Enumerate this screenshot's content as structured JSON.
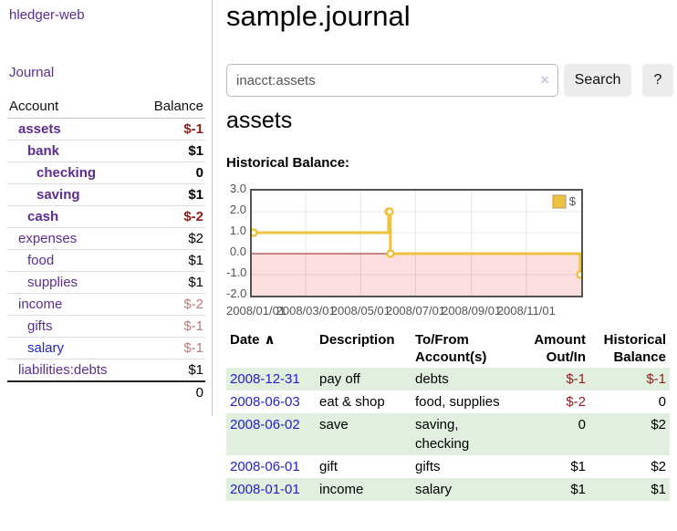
{
  "app": {
    "brand": "hledger-web",
    "nav": {
      "journal": "Journal"
    }
  },
  "colors": {
    "link_purple": "#5c2d91",
    "link_blue": "#2222cc",
    "negative_red": "#8f1d1d",
    "muted_negative": "#bd7a7a",
    "row_green": "#e1efdf",
    "chart_gold": "#edc240",
    "chart_negative_region": "#fbdede",
    "chart_zero_line": "#8f1d1d",
    "chart_border": "#545454"
  },
  "sidebar": {
    "headers": {
      "account": "Account",
      "balance": "Balance"
    },
    "accounts": [
      {
        "name": "assets",
        "balance": "$-1",
        "level": 1,
        "bold": true,
        "link": "purple",
        "style": "negb"
      },
      {
        "name": "bank",
        "balance": "$1",
        "level": 2,
        "bold": true,
        "link": "purple",
        "style": "posb"
      },
      {
        "name": "checking",
        "balance": "0",
        "level": 3,
        "bold": true,
        "link": "purple",
        "style": "posb"
      },
      {
        "name": "saving",
        "balance": "$1",
        "level": 3,
        "bold": true,
        "link": "purple",
        "style": "posb"
      },
      {
        "name": "cash",
        "balance": "$-2",
        "level": 2,
        "bold": true,
        "link": "purple",
        "style": "negb"
      },
      {
        "name": "expenses",
        "balance": "$2",
        "level": 1,
        "bold": false,
        "link": "purple",
        "style": "plain"
      },
      {
        "name": "food",
        "balance": "$1",
        "level": 2,
        "bold": false,
        "link": "purple",
        "style": "plain"
      },
      {
        "name": "supplies",
        "balance": "$1",
        "level": 2,
        "bold": false,
        "link": "purple",
        "style": "plain"
      },
      {
        "name": "income",
        "balance": "$-2",
        "level": 1,
        "bold": false,
        "link": "purple",
        "style": "rose"
      },
      {
        "name": "gifts",
        "balance": "$-1",
        "level": 2,
        "bold": false,
        "link": "purple",
        "style": "rose"
      },
      {
        "name": "salary",
        "balance": "$-1",
        "level": 2,
        "bold": false,
        "link": "blue",
        "style": "rose"
      },
      {
        "name": "liabilities:debts",
        "balance": "$1",
        "level": 1,
        "bold": false,
        "link": "purple",
        "style": "plain"
      }
    ],
    "total": "0"
  },
  "main": {
    "title": "sample.journal",
    "search": {
      "value": "inacct:assets",
      "clear_icon": "×",
      "search_button": "Search",
      "help_button": "?"
    },
    "account_heading": "assets",
    "chart_heading": "Historical Balance:"
  },
  "chart_data": {
    "type": "line",
    "title": "Historical Balance",
    "step": true,
    "grid": true,
    "legend_position": "top-right",
    "ylim": [
      -2.0,
      3.0
    ],
    "xlim": [
      "2008-01-01",
      "2009-01-01"
    ],
    "yticks": [
      "3.0",
      "2.0",
      "1.0",
      "0.0",
      "-1.0",
      "-2.0"
    ],
    "ytick_values": [
      3,
      2,
      1,
      0,
      -1,
      -2
    ],
    "xticks": [
      {
        "label": "2008/01/01",
        "date": "2008-01-01"
      },
      {
        "label": "2008/03/01",
        "date": "2008-03-01"
      },
      {
        "label": "2008/05/01",
        "date": "2008-05-01"
      },
      {
        "label": "2008/07/01",
        "date": "2008-07-01"
      },
      {
        "label": "2008/09/01",
        "date": "2008-09-01"
      },
      {
        "label": "2008/11/01",
        "date": "2008-11-01"
      }
    ],
    "series": [
      {
        "name": "$",
        "color": "#edc240",
        "points": [
          {
            "date": "2008-01-01",
            "value": 1
          },
          {
            "date": "2008-06-01",
            "value": 2
          },
          {
            "date": "2008-06-02",
            "value": 2
          },
          {
            "date": "2008-06-03",
            "value": 0
          },
          {
            "date": "2008-12-31",
            "value": -1
          }
        ]
      }
    ],
    "annotations": {
      "negative_region_shaded": true,
      "zero_line": true
    }
  },
  "register": {
    "headers": {
      "date": "Date",
      "sort_icon": "∧",
      "description": "Description",
      "tofrom": "To/From Account(s)",
      "amount": "Amount Out/In",
      "historical": "Historical Balance"
    },
    "rows": [
      {
        "date": "2008-12-31",
        "description": "pay off",
        "accounts": "debts",
        "amount": "$-1",
        "amount_style": "neg",
        "balance": "$-1",
        "balance_style": "neg",
        "shade": true
      },
      {
        "date": "2008-06-03",
        "description": "eat & shop",
        "accounts": "food, supplies",
        "amount": "$-2",
        "amount_style": "neg",
        "balance": "0",
        "balance_style": "plain",
        "shade": false
      },
      {
        "date": "2008-06-02",
        "description": "save",
        "accounts": "saving, checking",
        "amount": "0",
        "amount_style": "plain",
        "balance": "$2",
        "balance_style": "plain",
        "shade": true
      },
      {
        "date": "2008-06-01",
        "description": "gift",
        "accounts": "gifts",
        "amount": "$1",
        "amount_style": "plain",
        "balance": "$2",
        "balance_style": "plain",
        "shade": false
      },
      {
        "date": "2008-01-01",
        "description": "income",
        "accounts": "salary",
        "amount": "$1",
        "amount_style": "plain",
        "balance": "$1",
        "balance_style": "plain",
        "shade": true
      }
    ]
  }
}
